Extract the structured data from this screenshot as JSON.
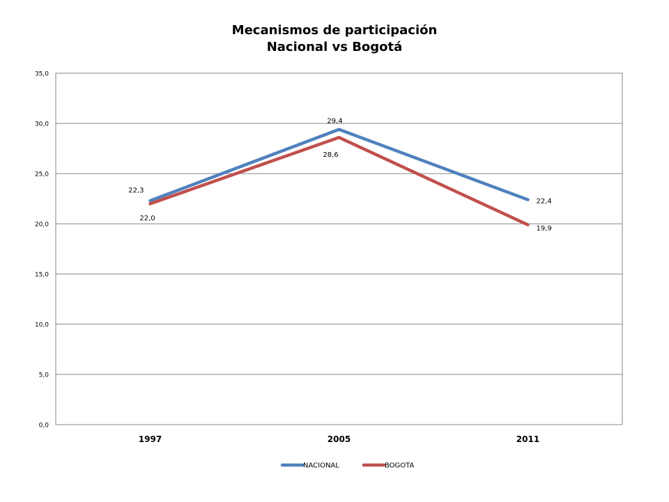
{
  "chart_data": {
    "type": "line",
    "title": [
      "Mecanismos  de participación",
      "Nacional  vs Bogotá"
    ],
    "categories": [
      "1997",
      "2005",
      "2011"
    ],
    "series": [
      {
        "name": "NACIONAL",
        "values": [
          22.3,
          29.4,
          22.4
        ],
        "labels": [
          "22,3",
          "29,4",
          "22,4"
        ],
        "color": "#4F81BD"
      },
      {
        "name": "BOGOTA",
        "values": [
          22.0,
          28.6,
          19.9
        ],
        "labels": [
          "22,0",
          "28,6",
          "19,9"
        ],
        "color": "#C0504D"
      }
    ],
    "ylim": [
      0,
      35
    ],
    "y_ticks": [
      0,
      5,
      10,
      15,
      20,
      25,
      30,
      35
    ],
    "y_tick_labels": [
      "0,0",
      "5,0",
      "10,0",
      "15,0",
      "20,0",
      "25,0",
      "30,0",
      "35,0"
    ],
    "grid": true,
    "legend_position": "bottom",
    "xlabel": "",
    "ylabel": ""
  }
}
